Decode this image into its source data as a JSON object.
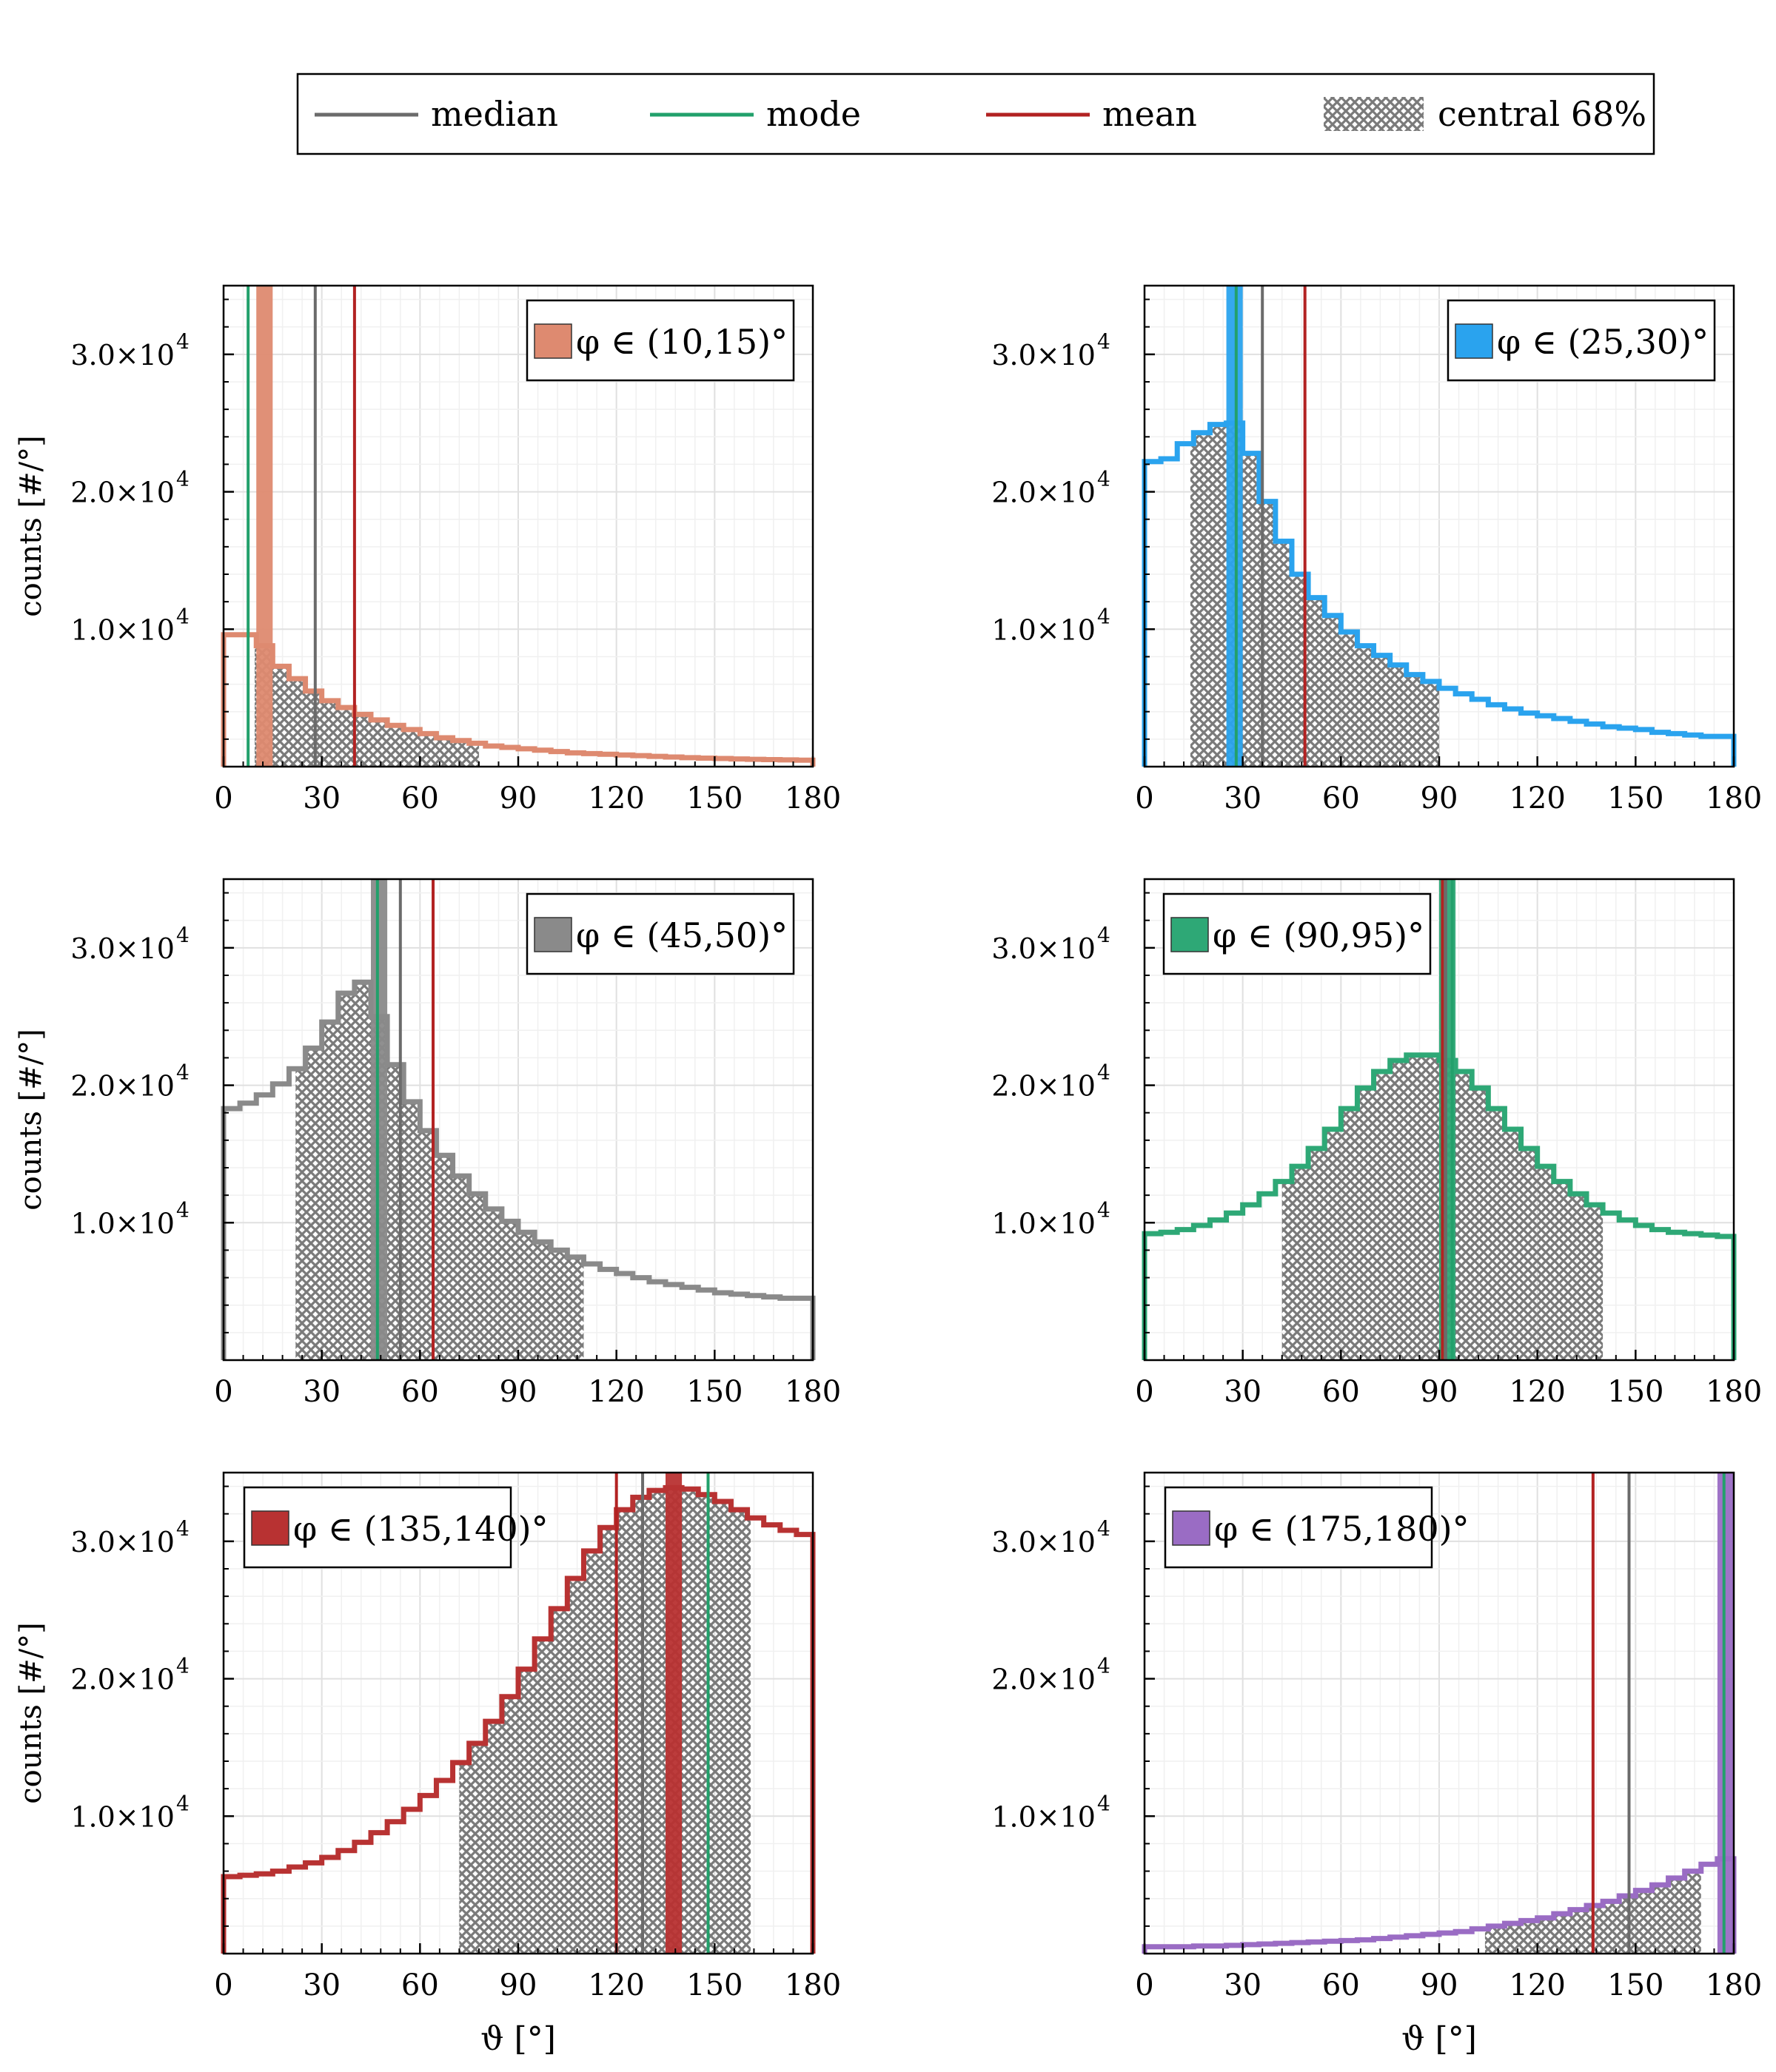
{
  "figure": {
    "legend": [
      {
        "label": "median",
        "kind": "line",
        "color": "#6b6b6b"
      },
      {
        "label": "mode",
        "kind": "line",
        "color": "#22a06b"
      },
      {
        "label": "mean",
        "kind": "line",
        "color": "#b22222"
      },
      {
        "label": "central 68%",
        "kind": "hatch",
        "color": "#777777"
      }
    ],
    "xlabel": "ϑ [°]",
    "ylabel": "counts [#/°]"
  },
  "chart_data": [
    {
      "type": "step-histogram",
      "title": "φ ∈ (10,15)°",
      "color": "#de8a70",
      "xlim": [
        0,
        180
      ],
      "ylim": [
        0,
        35000
      ],
      "xticks": [
        "0",
        "30",
        "60",
        "90",
        "120",
        "150",
        "180"
      ],
      "yticks": [
        {
          "value": 10000,
          "label": "1.0×10",
          "exp": "4"
        },
        {
          "value": 20000,
          "label": "2.0×10",
          "exp": "4"
        },
        {
          "value": 30000,
          "label": "3.0×10",
          "exp": "4"
        }
      ],
      "edges": [
        0,
        5,
        10,
        15,
        20,
        25,
        30,
        35,
        40,
        45,
        50,
        55,
        60,
        65,
        70,
        75,
        80,
        85,
        90,
        95,
        100,
        105,
        110,
        115,
        120,
        125,
        130,
        135,
        140,
        145,
        150,
        155,
        160,
        165,
        170,
        175,
        180
      ],
      "counts": [
        9600,
        9600,
        8800,
        7300,
        6400,
        5500,
        4800,
        4300,
        3800,
        3400,
        3000,
        2700,
        2400,
        2100,
        1900,
        1700,
        1500,
        1400,
        1300,
        1200,
        1100,
        1000,
        950,
        900,
        850,
        800,
        750,
        700,
        650,
        620,
        590,
        560,
        530,
        510,
        490,
        470
      ],
      "median": 28,
      "mode": 7.5,
      "mean": 40,
      "central68": [
        9.5,
        78
      ]
    },
    {
      "type": "step-histogram",
      "title": "φ ∈ (25,30)°",
      "color": "#2aa3ee",
      "xlim": [
        0,
        180
      ],
      "ylim": [
        0,
        35000
      ],
      "xticks": [
        "0",
        "30",
        "60",
        "90",
        "120",
        "150",
        "180"
      ],
      "yticks": [
        {
          "value": 10000,
          "label": "1.0×10",
          "exp": "4"
        },
        {
          "value": 20000,
          "label": "2.0×10",
          "exp": "4"
        },
        {
          "value": 30000,
          "label": "3.0×10",
          "exp": "4"
        }
      ],
      "edges": [
        0,
        5,
        10,
        15,
        20,
        25,
        30,
        35,
        40,
        45,
        50,
        55,
        60,
        65,
        70,
        75,
        80,
        85,
        90,
        95,
        100,
        105,
        110,
        115,
        120,
        125,
        130,
        135,
        140,
        145,
        150,
        155,
        160,
        165,
        170,
        175,
        180
      ],
      "counts": [
        22200,
        22400,
        23500,
        24300,
        24900,
        25000,
        22800,
        19300,
        16400,
        14000,
        12300,
        11000,
        9800,
        8800,
        8100,
        7400,
        6700,
        6200,
        5700,
        5300,
        4900,
        4500,
        4200,
        3900,
        3700,
        3500,
        3300,
        3100,
        2900,
        2800,
        2700,
        2500,
        2400,
        2300,
        2200,
        2200
      ],
      "median": 36,
      "mode": 28,
      "mean": 49,
      "central68": [
        14,
        90
      ]
    },
    {
      "type": "step-histogram",
      "title": "φ ∈ (45,50)°",
      "color": "#8a8a8a",
      "xlim": [
        0,
        180
      ],
      "ylim": [
        0,
        35000
      ],
      "xticks": [
        "0",
        "30",
        "60",
        "90",
        "120",
        "150",
        "180"
      ],
      "yticks": [
        {
          "value": 10000,
          "label": "1.0×10",
          "exp": "4"
        },
        {
          "value": 20000,
          "label": "2.0×10",
          "exp": "4"
        },
        {
          "value": 30000,
          "label": "3.0×10",
          "exp": "4"
        }
      ],
      "edges": [
        0,
        5,
        10,
        15,
        20,
        25,
        30,
        35,
        40,
        45,
        50,
        55,
        60,
        65,
        70,
        75,
        80,
        85,
        90,
        95,
        100,
        105,
        110,
        115,
        120,
        125,
        130,
        135,
        140,
        145,
        150,
        155,
        160,
        165,
        170,
        175,
        180
      ],
      "counts": [
        18300,
        18700,
        19300,
        20100,
        21200,
        22700,
        24600,
        26700,
        27500,
        25000,
        21500,
        18800,
        16700,
        14900,
        13400,
        12100,
        11000,
        10100,
        9300,
        8600,
        8000,
        7500,
        7000,
        6600,
        6300,
        6000,
        5700,
        5500,
        5300,
        5100,
        4900,
        4800,
        4700,
        4600,
        4500,
        4500
      ],
      "median": 54,
      "mode": 47,
      "mean": 64,
      "central68": [
        22,
        110
      ]
    },
    {
      "type": "step-histogram",
      "title": "φ ∈ (90,95)°",
      "color": "#2ea876",
      "xlim": [
        0,
        180
      ],
      "ylim": [
        0,
        35000
      ],
      "xticks": [
        "0",
        "30",
        "60",
        "90",
        "120",
        "150",
        "180"
      ],
      "yticks": [
        {
          "value": 10000,
          "label": "1.0×10",
          "exp": "4"
        },
        {
          "value": 20000,
          "label": "2.0×10",
          "exp": "4"
        },
        {
          "value": 30000,
          "label": "3.0×10",
          "exp": "4"
        }
      ],
      "edges": [
        0,
        5,
        10,
        15,
        20,
        25,
        30,
        35,
        40,
        45,
        50,
        55,
        60,
        65,
        70,
        75,
        80,
        85,
        90,
        95,
        100,
        105,
        110,
        115,
        120,
        125,
        130,
        135,
        140,
        145,
        150,
        155,
        160,
        165,
        170,
        175,
        180
      ],
      "counts": [
        9200,
        9300,
        9500,
        9800,
        10200,
        10700,
        11300,
        12100,
        13000,
        14100,
        15400,
        16800,
        18300,
        19800,
        21000,
        21800,
        22200,
        22200,
        21800,
        21000,
        19800,
        18300,
        16800,
        15400,
        14100,
        13000,
        12100,
        11300,
        10700,
        10200,
        9800,
        9500,
        9300,
        9200,
        9100,
        9000
      ],
      "median": 92,
      "mode": 94,
      "mean": 91,
      "central68": [
        42,
        140
      ]
    },
    {
      "type": "step-histogram",
      "title": "φ ∈ (135,140)°",
      "color": "#b83232",
      "xlim": [
        0,
        180
      ],
      "ylim": [
        0,
        35000
      ],
      "xticks": [
        "0",
        "30",
        "60",
        "90",
        "120",
        "150",
        "180"
      ],
      "yticks": [
        {
          "value": 10000,
          "label": "1.0×10",
          "exp": "4"
        },
        {
          "value": 20000,
          "label": "2.0×10",
          "exp": "4"
        },
        {
          "value": 30000,
          "label": "3.0×10",
          "exp": "4"
        }
      ],
      "edges": [
        0,
        5,
        10,
        15,
        20,
        25,
        30,
        35,
        40,
        45,
        50,
        55,
        60,
        65,
        70,
        75,
        80,
        85,
        90,
        95,
        100,
        105,
        110,
        115,
        120,
        125,
        130,
        135,
        140,
        145,
        150,
        155,
        160,
        165,
        170,
        175,
        180
      ],
      "counts": [
        5600,
        5700,
        5800,
        6000,
        6300,
        6600,
        7000,
        7500,
        8100,
        8800,
        9600,
        10500,
        11500,
        12600,
        13900,
        15300,
        16900,
        18700,
        20700,
        22900,
        25100,
        27300,
        29300,
        31000,
        32300,
        33200,
        33700,
        33900,
        33800,
        33400,
        32900,
        32300,
        31700,
        31200,
        30800,
        30500
      ],
      "median": 128,
      "mode": 148,
      "mean": 120,
      "central68": [
        72,
        161
      ]
    },
    {
      "type": "step-histogram",
      "title": "φ ∈ (175,180)°",
      "color": "#9a6cc4",
      "xlim": [
        0,
        180
      ],
      "ylim": [
        0,
        35000
      ],
      "xticks": [
        "0",
        "30",
        "60",
        "90",
        "120",
        "150",
        "180"
      ],
      "yticks": [
        {
          "value": 10000,
          "label": "1.0×10",
          "exp": "4"
        },
        {
          "value": 20000,
          "label": "2.0×10",
          "exp": "4"
        },
        {
          "value": 30000,
          "label": "3.0×10",
          "exp": "4"
        }
      ],
      "edges": [
        0,
        5,
        10,
        15,
        20,
        25,
        30,
        35,
        40,
        45,
        50,
        55,
        60,
        65,
        70,
        75,
        80,
        85,
        90,
        95,
        100,
        105,
        110,
        115,
        120,
        125,
        130,
        135,
        140,
        145,
        150,
        155,
        160,
        165,
        170,
        175,
        180
      ],
      "counts": [
        500,
        500,
        500,
        550,
        550,
        600,
        650,
        700,
        750,
        800,
        850,
        900,
        950,
        1000,
        1100,
        1200,
        1300,
        1400,
        1500,
        1600,
        1800,
        2000,
        2200,
        2400,
        2600,
        2900,
        3200,
        3500,
        3800,
        4200,
        4600,
        5000,
        5500,
        6000,
        6500,
        6900
      ],
      "median": 148,
      "mode": 177,
      "mean": 137,
      "central68": [
        104,
        170
      ]
    }
  ]
}
